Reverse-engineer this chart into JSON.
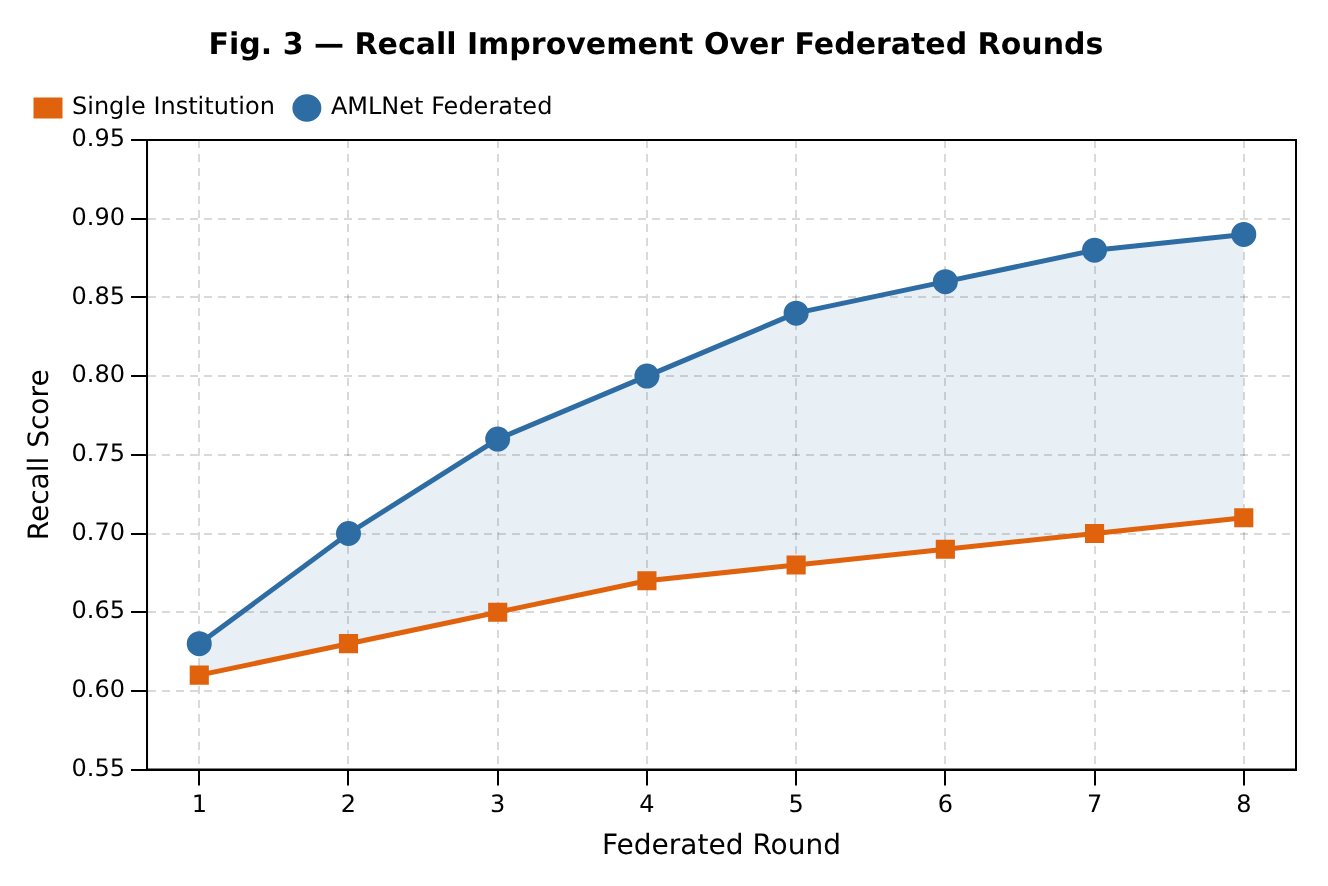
{
  "chart_data": {
    "type": "line",
    "title": "Fig. 3 — Recall Improvement Over Federated Rounds",
    "xlabel": "Federated Round",
    "ylabel": "Recall Score",
    "x": [
      1,
      2,
      3,
      4,
      5,
      6,
      7,
      8
    ],
    "series": [
      {
        "name": "Single Institution",
        "color": "#e0620d",
        "marker": "square",
        "values": [
          0.61,
          0.63,
          0.65,
          0.67,
          0.68,
          0.69,
          0.7,
          0.71
        ]
      },
      {
        "name": "AMLNet Federated",
        "color": "#2e6ca4",
        "marker": "circle",
        "values": [
          0.63,
          0.7,
          0.76,
          0.8,
          0.84,
          0.86,
          0.88,
          0.89
        ],
        "lower": [
          0.61,
          0.63,
          0.65,
          0.67,
          0.68,
          0.69,
          0.7,
          0.71
        ],
        "upper": [
          0.63,
          0.7,
          0.76,
          0.8,
          0.84,
          0.86,
          0.88,
          0.89
        ]
      }
    ],
    "xlim": [
      0.65,
      8.35
    ],
    "xticks": [
      1,
      2,
      3,
      4,
      5,
      6,
      7,
      8
    ],
    "ylim": [
      0.55,
      0.95
    ],
    "yticks": [
      0.55,
      {
        "value": 0.6,
        "label": "0.60"
      },
      0.65,
      {
        "value": 0.7,
        "label": "0.70"
      },
      0.75,
      {
        "value": 0.8,
        "label": "0.80"
      },
      0.85,
      {
        "value": 0.9,
        "label": "0.90"
      },
      0.95
    ],
    "grid": true,
    "legend": "top left",
    "line_style": "solid"
  }
}
